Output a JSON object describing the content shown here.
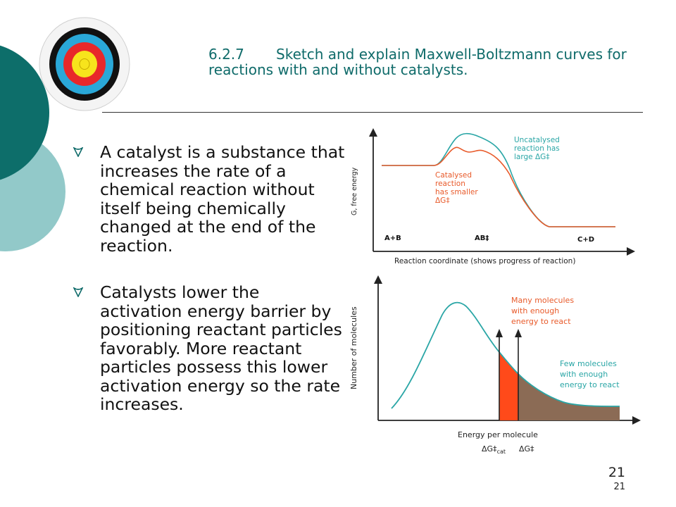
{
  "slide": {
    "title_number": "6.2.7",
    "title_text": "Sketch and explain Maxwell-Boltzmann curves for reactions with and without catalysts.",
    "bullets": [
      "A catalyst is a substance that increases the rate of a chemical reaction without itself being chemically changed at the end of the reaction.",
      "Catalysts lower the activation energy barrier by positioning reactant particles favorably. More reactant particles possess this lower activation energy so the rate increases."
    ],
    "page_number": "21",
    "page_number_small": "21"
  },
  "colors": {
    "title": "#0f6b6a",
    "dark_teal": "#0d6e6a",
    "light_teal": "#92c9c9",
    "uncatalysed": "#2aa6a6",
    "catalysed": "#e85a2a",
    "many_fill": "#ff4a1a",
    "few_fill": "#8b6b55"
  },
  "energy_diagram": {
    "ylabel": "G, free energy",
    "xlabel": "Reaction coordinate (shows progress of reaction)",
    "label_reactants": "A+B",
    "label_ts": "AB‡",
    "label_products": "C+D",
    "uncat_label_lines": [
      "Uncatalysed",
      "reaction has",
      "large ΔG‡"
    ],
    "cat_label_lines": [
      "Catalysed",
      "reaction",
      "has smaller",
      "ΔG‡"
    ]
  },
  "mb_diagram": {
    "ylabel": "Number of molecules",
    "xlabel": "Energy per molecule",
    "many_label_lines": [
      "Many molecules",
      "with enough",
      "energy to react"
    ],
    "few_label_lines": [
      "Few molecules",
      "with enough",
      "energy to react"
    ],
    "ea_cat_main": "ΔG‡",
    "ea_cat_sub": "cat",
    "ea_uncat": "ΔG‡"
  }
}
